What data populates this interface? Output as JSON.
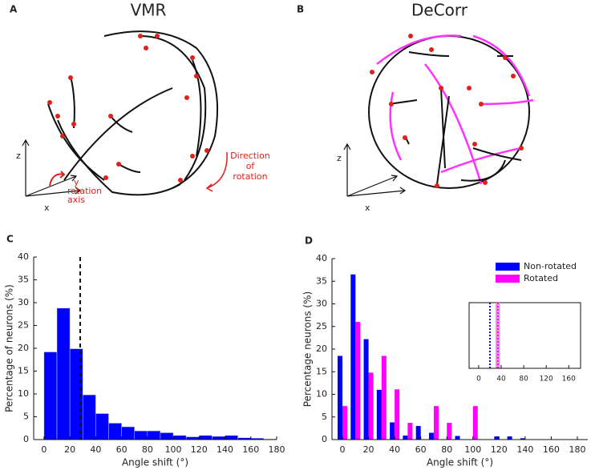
{
  "panels": [
    {
      "label": "A",
      "title": "VMR",
      "axis_z": "z",
      "axis_y": "y",
      "axis_x": "x",
      "rotation_axis_label": [
        "rotation",
        "axis"
      ],
      "direction_label": [
        "Direction",
        "of",
        "rotation"
      ]
    },
    {
      "label": "B",
      "title": "DeCorr",
      "axis_z": "z",
      "axis_x": "x"
    }
  ],
  "chart_data": [
    {
      "type": "histogram",
      "panel_label": "C",
      "xlabel": "Angle shift (°)",
      "ylabel": "Percentage of neurons (%)",
      "bins": [
        0,
        10,
        20,
        30,
        40,
        50,
        60,
        70,
        80,
        90,
        100,
        110,
        120,
        130,
        140,
        150,
        160,
        170,
        180
      ],
      "counts": [
        19.2,
        28.8,
        19.9,
        9.8,
        5.7,
        3.6,
        2.8,
        1.9,
        1.9,
        1.5,
        0.9,
        0.6,
        0.9,
        0.7,
        0.9,
        0.4,
        0.3,
        0.1
      ],
      "color": "#0000ff",
      "reference_line": 28,
      "xlim": [
        -8,
        180
      ],
      "ylim": [
        0,
        40
      ],
      "xticks": [
        0,
        20,
        40,
        60,
        80,
        100,
        120,
        140,
        160,
        180
      ],
      "yticks": [
        0,
        5,
        10,
        15,
        20,
        25,
        30,
        35,
        40
      ]
    },
    {
      "type": "grouped_bar",
      "panel_label": "D",
      "xlabel": "Angle shift (°)",
      "ylabel": "Percentage neurons (%)",
      "x": [
        0,
        10,
        20,
        30,
        40,
        50,
        60,
        70,
        80,
        90,
        100,
        110,
        120,
        130,
        140,
        150,
        160,
        170,
        180
      ],
      "series": [
        {
          "name": "Non-rotated",
          "color": "#0000ff",
          "values": [
            18.5,
            36.5,
            22.2,
            11,
            3.8,
            0.9,
            3,
            1.5,
            0,
            0.8,
            0,
            0,
            0.7,
            0.7,
            0.3,
            0,
            0,
            0,
            0
          ]
        },
        {
          "name": "Rotated",
          "color": "#ff00ff",
          "values": [
            7.4,
            26,
            14.8,
            18.5,
            11.1,
            3.7,
            0,
            7.4,
            3.7,
            0,
            7.4,
            0,
            0,
            0,
            0,
            0,
            0,
            0,
            0
          ]
        }
      ],
      "legend": "upper right",
      "xlim": [
        -8,
        188
      ],
      "ylim": [
        0,
        40
      ],
      "xticks": [
        0,
        20,
        40,
        60,
        80,
        100,
        120,
        140,
        160,
        180
      ],
      "yticks": [
        0,
        5,
        10,
        15,
        20,
        25,
        30,
        35,
        40
      ]
    },
    {
      "type": "inset",
      "xlim": [
        -17,
        181
      ],
      "xticks": [
        0,
        40,
        80,
        120,
        160
      ],
      "markers": [
        {
          "value": 20,
          "color": "#0000ff"
        },
        {
          "value": 34,
          "color": "#ff00ff"
        }
      ],
      "band": [
        30,
        38
      ]
    }
  ]
}
